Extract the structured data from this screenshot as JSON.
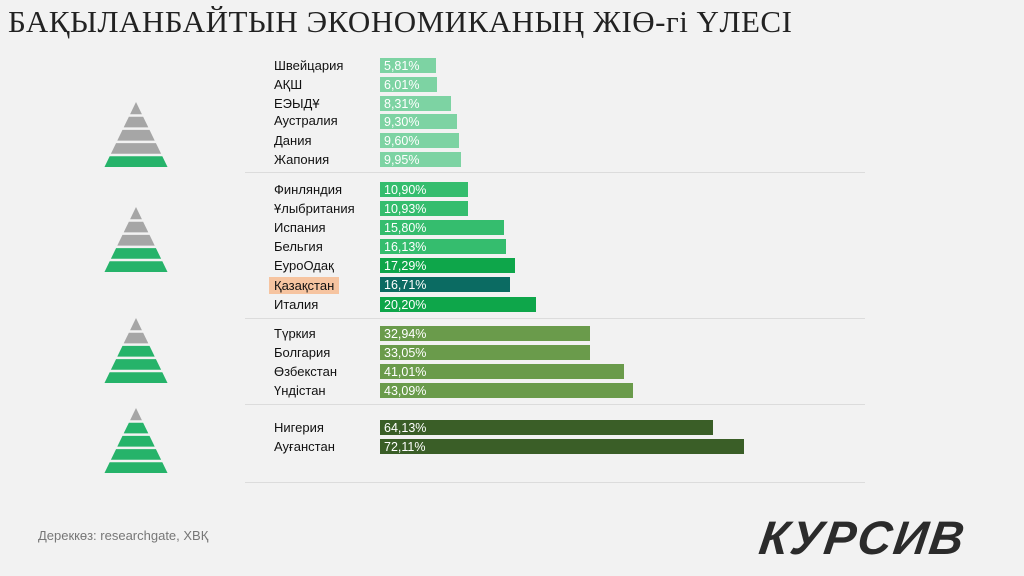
{
  "title": "БАҚЫЛАНБАЙТЫН ЭКОНОМИКАНЫҢ ЖІӨ-гі ҮЛЕСІ",
  "source": "Дереккөз:  researchgate, ХВҚ",
  "logo": "КУРСИВ",
  "colors": {
    "g1": "#7dd3a3",
    "g2": "#35bd6e",
    "g2b": "#0ea64a",
    "kz": "#0b6b62",
    "g3": "#6a9b4b",
    "g4": "#3a5e27",
    "pyr_gray": "#a6a6a6",
    "pyr_green": "#26b36a"
  },
  "chart_data": {
    "type": "bar",
    "orientation": "horizontal",
    "unit": "%",
    "groups": [
      {
        "green_levels": 1,
        "items": [
          {
            "label": "Швейцария",
            "value": 5.81,
            "text": "5,81%"
          },
          {
            "label": "АҚШ",
            "value": 6.01,
            "text": "6,01%"
          },
          {
            "label": "ЕЭЫДҰ",
            "value": 8.31,
            "text": "8,31%"
          },
          {
            "label": "Аустралия",
            "value": 9.3,
            "text": "9,30%"
          },
          {
            "label": "Дания",
            "value": 9.6,
            "text": "9,60%"
          },
          {
            "label": "Жапония",
            "value": 9.95,
            "text": "9,95%"
          }
        ]
      },
      {
        "green_levels": 2,
        "items": [
          {
            "label": "Финляндия",
            "value": 10.9,
            "text": "10,90%"
          },
          {
            "label": "Ұлыбритания",
            "value": 10.93,
            "text": "10,93%"
          },
          {
            "label": "Испания",
            "value": 15.8,
            "text": "15,80%"
          },
          {
            "label": "Бельгия",
            "value": 16.13,
            "text": "16,13%"
          },
          {
            "label": "ЕуроОдақ",
            "value": 17.29,
            "text": "17,29%"
          },
          {
            "label": "Қазақстан",
            "value": 16.71,
            "text": "16,71%",
            "highlight": true
          },
          {
            "label": "Италия",
            "value": 20.2,
            "text": "20,20%"
          }
        ]
      },
      {
        "green_levels": 3,
        "items": [
          {
            "label": "Түркия",
            "value": 32.94,
            "text": "32,94%"
          },
          {
            "label": "Болгария",
            "value": 33.05,
            "text": "33,05%"
          },
          {
            "label": "Өзбекстан",
            "value": 41.01,
            "text": "41,01%"
          },
          {
            "label": "Үндістан",
            "value": 43.09,
            "text": "43,09%"
          }
        ]
      },
      {
        "green_levels": 4,
        "items": [
          {
            "label": "Нигерия",
            "value": 64.13,
            "text": "64,13%"
          },
          {
            "label": "Ауғанстан",
            "value": 72.11,
            "text": "72,11%"
          }
        ]
      }
    ]
  }
}
